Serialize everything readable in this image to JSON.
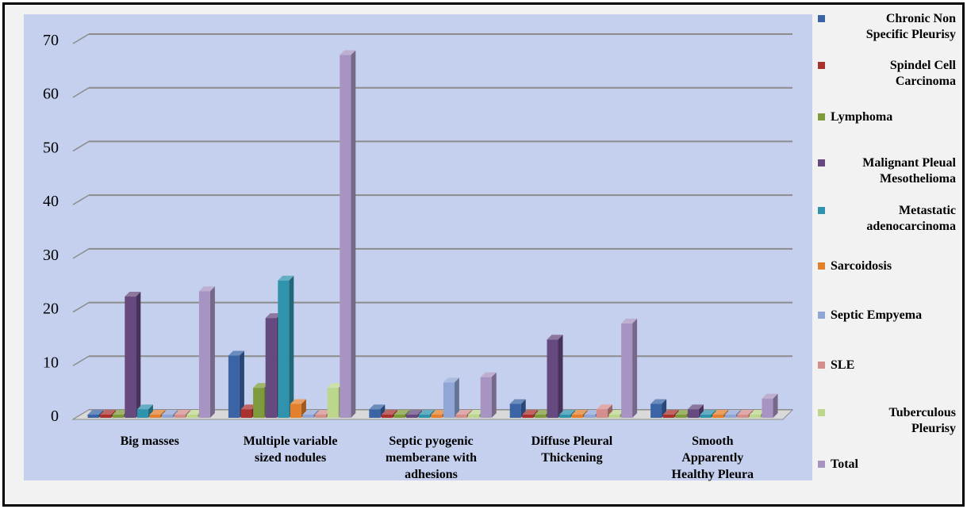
{
  "chart_data": {
    "type": "bar",
    "title": "",
    "xlabel": "",
    "ylabel": "",
    "ylim": [
      0,
      70
    ],
    "yticks": [
      0,
      10,
      20,
      30,
      40,
      50,
      60,
      70
    ],
    "grid": true,
    "legend_position": "right",
    "categories": [
      [
        "Big masses"
      ],
      [
        "Multiple variable",
        "sized nodules"
      ],
      [
        "Septic pyogenic",
        "memberane with",
        "adhesions"
      ],
      [
        "Diffuse Pleural",
        "Thickening"
      ],
      [
        "Smooth",
        "Apparently",
        "Healthy Pleura"
      ]
    ],
    "series": [
      {
        "name": [
          "Chronic Non",
          "Specific Pleurisy"
        ],
        "color": "#3a64a6",
        "values": [
          0,
          11,
          1,
          2,
          2
        ]
      },
      {
        "name": [
          "Spindel Cell",
          "Carcinoma"
        ],
        "color": "#a9322f",
        "values": [
          0,
          1,
          0,
          0,
          0
        ]
      },
      {
        "name": [
          "Lymphoma"
        ],
        "color": "#7d9b3a",
        "values": [
          0,
          5,
          0,
          0,
          0
        ]
      },
      {
        "name": [
          "Malignant Pleual",
          "Mesothelioma"
        ],
        "color": "#65497f",
        "values": [
          22,
          18,
          0,
          14,
          1
        ]
      },
      {
        "name": [
          "Metastatic",
          "adenocarcinoma"
        ],
        "color": "#2f93ad",
        "values": [
          1,
          25,
          0,
          0,
          0
        ]
      },
      {
        "name": [
          "Sarcoidosis"
        ],
        "color": "#e2802e",
        "values": [
          0,
          2,
          0,
          0,
          0
        ]
      },
      {
        "name": [
          "Septic Empyema"
        ],
        "color": "#8fa6d6",
        "values": [
          0,
          0,
          6,
          0,
          0
        ]
      },
      {
        "name": [
          "SLE"
        ],
        "color": "#d48e8c",
        "values": [
          0,
          0,
          0,
          1,
          0
        ]
      },
      {
        "name": [
          "Tuberculous",
          "Pleurisy"
        ],
        "color": "#bcd68e",
        "values": [
          0,
          5,
          0,
          0,
          0
        ]
      },
      {
        "name": [
          "Total"
        ],
        "color": "#a894c2",
        "values": [
          23,
          67,
          7,
          17,
          3
        ]
      }
    ]
  }
}
